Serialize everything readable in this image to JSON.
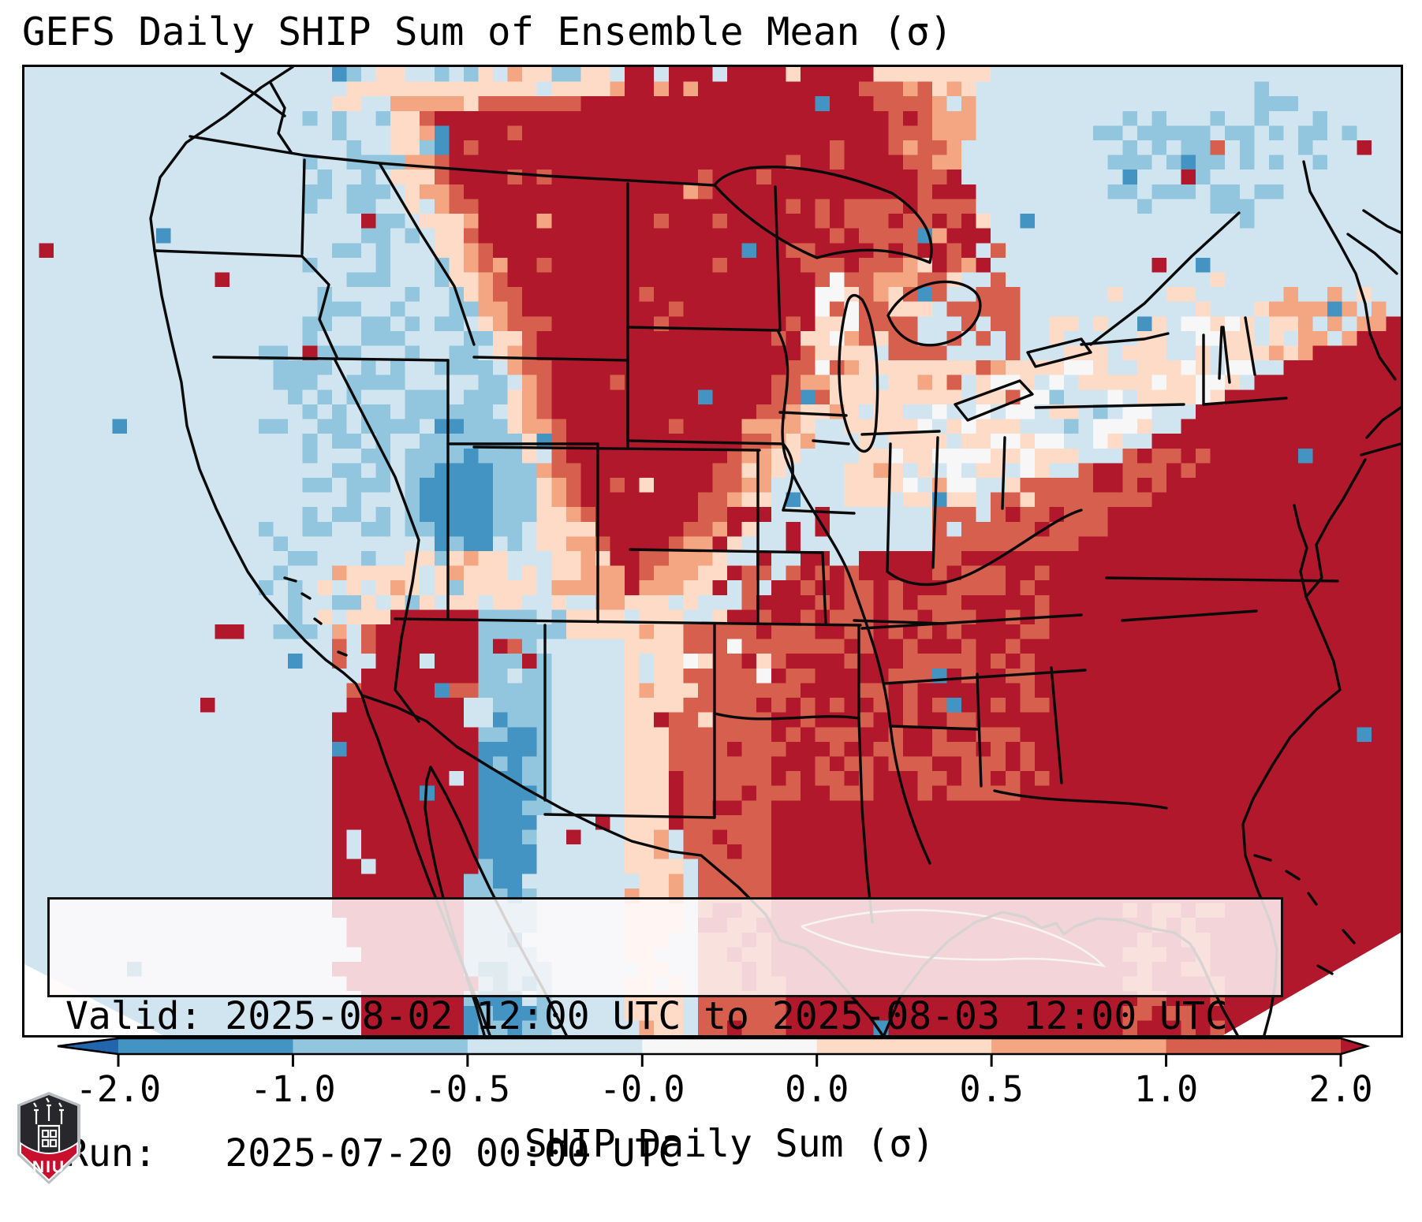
{
  "title": "GEFS Daily SHIP Sum of Ensemble Mean (σ)",
  "info_box": {
    "lines": [
      "Valid: 2025-08-02 12:00 UTC to 2025-08-03 12:00 UTC",
      "Run:   2025-07-20 00:00 UTC"
    ]
  },
  "logo": {
    "text": "NIU",
    "shield_dark": "#28282c",
    "shield_red": "#c8102e",
    "shield_trim": "#b9bcc0"
  },
  "chart_data": {
    "type": "heatmap",
    "title": "GEFS Daily SHIP Sum of Ensemble Mean (σ)",
    "projection": "CONUS map, Lambert-conformal style, pixelated ensemble-mean grid",
    "valid": "2025-08-02 12:00 UTC to 2025-08-03 12:00 UTC",
    "run": "2025-07-20 00:00 UTC",
    "colorbar": {
      "label": "SHIP Daily Sum (σ)",
      "ticks": [
        "-2.0",
        "-1.0",
        "-0.5",
        "-0.0",
        "0.0",
        "0.5",
        "1.0",
        "2.0"
      ],
      "extend": "both",
      "orientation": "horizontal"
    },
    "palette": [
      "#2166ac",
      "#4393c3",
      "#92c5de",
      "#d1e5f0",
      "#f7f7f7",
      "#fddbc7",
      "#f4a582",
      "#d6604d",
      "#b2182b"
    ],
    "thresholds": [
      -2,
      -1,
      -0.5,
      -0.05,
      0.05,
      0.5,
      1,
      2
    ],
    "base_sigma": -0.28,
    "grid": {
      "cols": 94,
      "rows": 66
    },
    "regions": [
      {
        "name": "pacific-northwest-speckle",
        "shape": "rect",
        "x": 0.2,
        "y": 0.0,
        "w": 0.23,
        "h": 0.44,
        "sigma": -0.75,
        "coverage": 0.3
      },
      {
        "name": "great-basin-speckle",
        "shape": "rect",
        "x": 0.17,
        "y": 0.27,
        "w": 0.17,
        "h": 0.32,
        "sigma": -0.75,
        "coverage": 0.33
      },
      {
        "name": "top-strip-peach-speckle",
        "shape": "rect",
        "x": 0.22,
        "y": 0.0,
        "w": 0.22,
        "h": 0.05,
        "sigma": 0.35,
        "coverage": 0.35
      },
      {
        "name": "plains-peach-halo",
        "shape": "poly",
        "pts": [
          [
            0.26,
            0.02
          ],
          [
            0.72,
            0.0
          ],
          [
            0.74,
            0.1
          ],
          [
            0.68,
            0.22
          ],
          [
            0.62,
            0.32
          ],
          [
            0.56,
            0.4
          ],
          [
            0.52,
            0.5
          ],
          [
            0.47,
            0.58
          ],
          [
            0.4,
            0.6
          ],
          [
            0.37,
            0.46
          ],
          [
            0.345,
            0.3
          ],
          [
            0.27,
            0.12
          ]
        ],
        "sigma": 0.35,
        "coverage": 0.92
      },
      {
        "name": "plains-orange-ring",
        "shape": "poly",
        "pts": [
          [
            0.28,
            0.03
          ],
          [
            0.68,
            0.01
          ],
          [
            0.7,
            0.1
          ],
          [
            0.64,
            0.22
          ],
          [
            0.58,
            0.33
          ],
          [
            0.53,
            0.44
          ],
          [
            0.48,
            0.54
          ],
          [
            0.42,
            0.56
          ],
          [
            0.375,
            0.42
          ],
          [
            0.35,
            0.28
          ],
          [
            0.29,
            0.12
          ]
        ],
        "sigma": 0.75,
        "coverage": 0.85
      },
      {
        "name": "plains-salmon-ring",
        "shape": "poly",
        "pts": [
          [
            0.29,
            0.04
          ],
          [
            0.66,
            0.02
          ],
          [
            0.67,
            0.12
          ],
          [
            0.61,
            0.24
          ],
          [
            0.55,
            0.36
          ],
          [
            0.5,
            0.48
          ],
          [
            0.44,
            0.54
          ],
          [
            0.385,
            0.42
          ],
          [
            0.355,
            0.26
          ],
          [
            0.3,
            0.12
          ]
        ],
        "sigma": 1.5,
        "coverage": 0.9
      },
      {
        "name": "northern-plains-dark-red",
        "shape": "poly",
        "pts": [
          [
            0.3,
            0.05
          ],
          [
            0.47,
            0.03
          ],
          [
            0.62,
            0.03
          ],
          [
            0.64,
            0.12
          ],
          [
            0.58,
            0.25
          ],
          [
            0.52,
            0.38
          ],
          [
            0.47,
            0.5
          ],
          [
            0.43,
            0.52
          ],
          [
            0.395,
            0.4
          ],
          [
            0.365,
            0.24
          ],
          [
            0.31,
            0.12
          ]
        ],
        "sigma": 2.5,
        "coverage": 0.95
      },
      {
        "name": "manitoba-top-red",
        "shape": "rect",
        "x": 0.44,
        "y": 0.0,
        "w": 0.18,
        "h": 0.06,
        "sigma": 2.5,
        "coverage": 0.8
      },
      {
        "name": "upper-midwest-salmon",
        "shape": "rect",
        "x": 0.55,
        "y": 0.13,
        "w": 0.17,
        "h": 0.22,
        "sigma": 1.5,
        "coverage": 0.55
      },
      {
        "name": "upper-michigan-red",
        "shape": "rect",
        "x": 0.55,
        "y": 0.11,
        "w": 0.17,
        "h": 0.1,
        "sigma": 2.5,
        "coverage": 0.4
      },
      {
        "name": "lake-michigan-white",
        "shape": "ellipse",
        "cx": 0.588,
        "cy": 0.27,
        "rx": 0.022,
        "ry": 0.055,
        "sigma": 0.1,
        "coverage": 0.8
      },
      {
        "name": "ohio-valley-peach",
        "shape": "rect",
        "x": 0.6,
        "y": 0.3,
        "w": 0.13,
        "h": 0.15,
        "sigma": 0.35,
        "coverage": 0.8
      },
      {
        "name": "ohio-valley-white-speckle",
        "shape": "rect",
        "x": 0.62,
        "y": 0.32,
        "w": 0.1,
        "h": 0.12,
        "sigma": 0.02,
        "coverage": 0.3
      },
      {
        "name": "colorado-utah-blue",
        "shape": "ellipse",
        "cx": 0.325,
        "cy": 0.44,
        "rx": 0.045,
        "ry": 0.085,
        "sigma": -0.85,
        "coverage": 0.9
      },
      {
        "name": "colorado-blue-core",
        "shape": "ellipse",
        "cx": 0.318,
        "cy": 0.45,
        "rx": 0.028,
        "ry": 0.055,
        "sigma": -1.45,
        "coverage": 0.75
      },
      {
        "name": "northeast-pale-blue",
        "shape": "poly",
        "pts": [
          [
            0.7,
            0.0
          ],
          [
            1.0,
            0.0
          ],
          [
            1.0,
            0.26
          ],
          [
            0.9,
            0.3
          ],
          [
            0.8,
            0.3
          ],
          [
            0.72,
            0.22
          ],
          [
            0.68,
            0.1
          ]
        ],
        "sigma": -0.3,
        "coverage": 1
      },
      {
        "name": "st-lawrence-blue",
        "shape": "poly",
        "pts": [
          [
            0.78,
            0.06
          ],
          [
            0.9,
            0.02
          ],
          [
            0.97,
            0.07
          ],
          [
            0.88,
            0.17
          ],
          [
            0.8,
            0.18
          ]
        ],
        "sigma": -0.8,
        "coverage": 0.45
      },
      {
        "name": "new-england-peach-speckle",
        "shape": "rect",
        "x": 0.74,
        "y": 0.21,
        "w": 0.24,
        "h": 0.17,
        "sigma": 0.3,
        "coverage": 0.28
      },
      {
        "name": "atlantic-transition-orange",
        "shape": "rect",
        "x": 0.9,
        "y": 0.22,
        "w": 0.1,
        "h": 0.12,
        "sigma": 0.8,
        "coverage": 0.5
      },
      {
        "name": "mid-atlantic-white-band",
        "shape": "poly",
        "pts": [
          [
            0.64,
            0.36
          ],
          [
            0.74,
            0.3
          ],
          [
            0.86,
            0.26
          ],
          [
            0.94,
            0.25
          ],
          [
            0.88,
            0.33
          ],
          [
            0.76,
            0.41
          ],
          [
            0.68,
            0.45
          ]
        ],
        "sigma": 0.05,
        "coverage": 0.9
      },
      {
        "name": "west-virginia-white",
        "shape": "ellipse",
        "cx": 0.705,
        "cy": 0.4,
        "rx": 0.05,
        "ry": 0.05,
        "sigma": 0.0,
        "coverage": 0.9
      },
      {
        "name": "chesapeake-pale-blue",
        "shape": "rect",
        "x": 0.735,
        "y": 0.33,
        "w": 0.05,
        "h": 0.05,
        "sigma": -0.35,
        "coverage": 0.6
      },
      {
        "name": "southeast-atlantic-dark-red",
        "shape": "poly",
        "pts": [
          [
            0.46,
            0.6
          ],
          [
            0.56,
            0.52
          ],
          [
            0.64,
            0.5
          ],
          [
            0.72,
            0.46
          ],
          [
            0.8,
            0.4
          ],
          [
            0.9,
            0.32
          ],
          [
            1.0,
            0.26
          ],
          [
            1.0,
            1.0
          ],
          [
            0.5,
            1.0
          ],
          [
            0.49,
            0.84
          ],
          [
            0.45,
            0.72
          ]
        ],
        "sigma": 2.5,
        "coverage": 1
      },
      {
        "name": "southeast-inland-salmon",
        "shape": "rect",
        "x": 0.52,
        "y": 0.52,
        "w": 0.22,
        "h": 0.24,
        "sigma": 1.5,
        "coverage": 0.5
      },
      {
        "name": "carolina-salmon-band",
        "shape": "poly",
        "pts": [
          [
            0.66,
            0.46
          ],
          [
            0.8,
            0.4
          ],
          [
            0.87,
            0.4
          ],
          [
            0.76,
            0.5
          ],
          [
            0.66,
            0.51
          ]
        ],
        "sigma": 1.4,
        "coverage": 0.8
      },
      {
        "name": "florida-salmon-patches",
        "shape": "rect",
        "x": 0.8,
        "y": 0.86,
        "w": 0.07,
        "h": 0.14,
        "sigma": 1.5,
        "coverage": 0.4
      },
      {
        "name": "kansas-missouri-red-patches",
        "shape": "rect",
        "x": 0.5,
        "y": 0.45,
        "w": 0.09,
        "h": 0.11,
        "sigma": 2.5,
        "coverage": 0.35
      },
      {
        "name": "oklahoma-white-pocket",
        "shape": "ellipse",
        "cx": 0.5,
        "cy": 0.625,
        "rx": 0.038,
        "ry": 0.058,
        "sigma": 0.15,
        "coverage": 0.85
      },
      {
        "name": "texas-salmon-column",
        "shape": "poly",
        "pts": [
          [
            0.48,
            0.58
          ],
          [
            0.53,
            0.58
          ],
          [
            0.54,
            0.72
          ],
          [
            0.545,
            0.86
          ],
          [
            0.55,
            1.0
          ],
          [
            0.49,
            1.0
          ],
          [
            0.485,
            0.82
          ],
          [
            0.47,
            0.7
          ]
        ],
        "sigma": 1.6,
        "coverage": 0.85
      },
      {
        "name": "texas-peach-column",
        "shape": "poly",
        "pts": [
          [
            0.435,
            0.58
          ],
          [
            0.48,
            0.58
          ],
          [
            0.47,
            0.72
          ],
          [
            0.475,
            0.86
          ],
          [
            0.48,
            1.0
          ],
          [
            0.435,
            1.0
          ],
          [
            0.44,
            0.84
          ],
          [
            0.435,
            0.7
          ]
        ],
        "sigma": 0.35,
        "coverage": 0.9
      },
      {
        "name": "arizona-peach-halo",
        "shape": "ellipse",
        "cx": 0.305,
        "cy": 0.555,
        "rx": 0.095,
        "ry": 0.055,
        "sigma": 0.35,
        "coverage": 0.7
      },
      {
        "name": "sonora-salmon-halo",
        "shape": "ellipse",
        "cx": 0.3,
        "cy": 0.63,
        "rx": 0.08,
        "ry": 0.07,
        "sigma": 1.5,
        "coverage": 0.55
      },
      {
        "name": "baja-sonora-dark-red",
        "shape": "poly",
        "pts": [
          [
            0.225,
            0.67
          ],
          [
            0.265,
            0.6
          ],
          [
            0.305,
            0.625
          ],
          [
            0.33,
            0.7
          ],
          [
            0.345,
            0.78
          ],
          [
            0.335,
            0.88
          ],
          [
            0.325,
            1.0
          ],
          [
            0.245,
            1.0
          ],
          [
            0.225,
            0.86
          ]
        ],
        "sigma": 2.5,
        "coverage": 0.97
      },
      {
        "name": "arizona-red-lobe",
        "shape": "ellipse",
        "cx": 0.3,
        "cy": 0.6,
        "rx": 0.05,
        "ry": 0.045,
        "sigma": 2.5,
        "coverage": 0.9
      },
      {
        "name": "texas-mexico-blue-band",
        "shape": "poly",
        "pts": [
          [
            0.335,
            0.56
          ],
          [
            0.39,
            0.56
          ],
          [
            0.38,
            0.7
          ],
          [
            0.375,
            0.84
          ],
          [
            0.38,
            1.0
          ],
          [
            0.315,
            1.0
          ],
          [
            0.325,
            0.82
          ],
          [
            0.33,
            0.68
          ]
        ],
        "sigma": -0.8,
        "coverage": 0.8
      },
      {
        "name": "rio-grande-blue-core",
        "shape": "ellipse",
        "cx": 0.352,
        "cy": 0.76,
        "rx": 0.022,
        "ry": 0.1,
        "sigma": -1.5,
        "coverage": 0.8
      },
      {
        "name": "mexico-blue-core-south",
        "shape": "ellipse",
        "cx": 0.345,
        "cy": 0.97,
        "rx": 0.028,
        "ry": 0.05,
        "sigma": -1.5,
        "coverage": 0.7
      },
      {
        "name": "utah-red-dot",
        "shape": "rect",
        "x": 0.201,
        "y": 0.288,
        "w": 0.012,
        "h": 0.018,
        "sigma": 2.6,
        "coverage": 1
      },
      {
        "name": "idaho-blue-dot",
        "shape": "rect",
        "x": 0.3,
        "y": 0.068,
        "w": 0.012,
        "h": 0.018,
        "sigma": -1.3,
        "coverage": 1
      },
      {
        "name": "quebec-red-dot",
        "shape": "rect",
        "x": 0.84,
        "y": 0.098,
        "w": 0.012,
        "h": 0.018,
        "sigma": 2.6,
        "coverage": 1
      },
      {
        "name": "quebec-salmon-dot",
        "shape": "rect",
        "x": 0.862,
        "y": 0.082,
        "w": 0.01,
        "h": 0.016,
        "sigma": 1.5,
        "coverage": 1
      }
    ]
  }
}
